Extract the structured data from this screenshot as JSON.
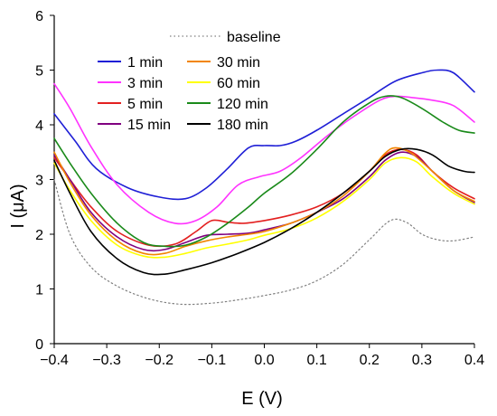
{
  "chart_data": {
    "type": "line",
    "title": "",
    "xlabel": "E (V)",
    "ylabel": "I (μA)",
    "xlim": [
      -0.4,
      0.4
    ],
    "ylim": [
      0,
      6
    ],
    "x_ticks": [
      "−0.4",
      "−0.3",
      "−0.2",
      "−0.1",
      "0.0",
      "0.1",
      "0.2",
      "0.3",
      "0.4"
    ],
    "y_ticks": [
      "0",
      "1",
      "2",
      "3",
      "4",
      "5",
      "6"
    ],
    "grid": false,
    "legend_position": "top-left",
    "series": [
      {
        "name": "baseline",
        "color": "#808080",
        "dash": "dotted",
        "points": [
          [
            -0.4,
            3.0
          ],
          [
            -0.37,
            2.0
          ],
          [
            -0.33,
            1.4
          ],
          [
            -0.28,
            1.05
          ],
          [
            -0.22,
            0.82
          ],
          [
            -0.16,
            0.72
          ],
          [
            -0.1,
            0.74
          ],
          [
            -0.05,
            0.8
          ],
          [
            0.0,
            0.88
          ],
          [
            0.05,
            0.98
          ],
          [
            0.1,
            1.15
          ],
          [
            0.15,
            1.45
          ],
          [
            0.2,
            1.9
          ],
          [
            0.24,
            2.25
          ],
          [
            0.27,
            2.22
          ],
          [
            0.3,
            2.0
          ],
          [
            0.33,
            1.9
          ],
          [
            0.36,
            1.88
          ],
          [
            0.4,
            1.95
          ]
        ]
      },
      {
        "name": "1 min",
        "color": "#1f1fd6",
        "dash": "solid",
        "points": [
          [
            -0.4,
            4.2
          ],
          [
            -0.36,
            3.7
          ],
          [
            -0.32,
            3.2
          ],
          [
            -0.26,
            2.85
          ],
          [
            -0.2,
            2.68
          ],
          [
            -0.15,
            2.65
          ],
          [
            -0.11,
            2.85
          ],
          [
            -0.07,
            3.2
          ],
          [
            -0.03,
            3.58
          ],
          [
            0.0,
            3.62
          ],
          [
            0.03,
            3.62
          ],
          [
            0.06,
            3.7
          ],
          [
            0.1,
            3.9
          ],
          [
            0.15,
            4.2
          ],
          [
            0.2,
            4.5
          ],
          [
            0.25,
            4.8
          ],
          [
            0.3,
            4.95
          ],
          [
            0.33,
            5.0
          ],
          [
            0.36,
            4.95
          ],
          [
            0.4,
            4.6
          ]
        ]
      },
      {
        "name": "3 min",
        "color": "#ff33ff",
        "dash": "solid",
        "points": [
          [
            -0.4,
            4.75
          ],
          [
            -0.37,
            4.3
          ],
          [
            -0.33,
            3.6
          ],
          [
            -0.28,
            2.9
          ],
          [
            -0.22,
            2.4
          ],
          [
            -0.17,
            2.2
          ],
          [
            -0.13,
            2.25
          ],
          [
            -0.09,
            2.5
          ],
          [
            -0.05,
            2.9
          ],
          [
            -0.01,
            3.05
          ],
          [
            0.03,
            3.15
          ],
          [
            0.07,
            3.4
          ],
          [
            0.12,
            3.8
          ],
          [
            0.17,
            4.15
          ],
          [
            0.22,
            4.45
          ],
          [
            0.25,
            4.52
          ],
          [
            0.28,
            4.5
          ],
          [
            0.32,
            4.45
          ],
          [
            0.36,
            4.35
          ],
          [
            0.4,
            4.05
          ]
        ]
      },
      {
        "name": "5 min",
        "color": "#e32020",
        "dash": "solid",
        "points": [
          [
            -0.4,
            3.4
          ],
          [
            -0.37,
            3.0
          ],
          [
            -0.33,
            2.5
          ],
          [
            -0.28,
            2.05
          ],
          [
            -0.22,
            1.8
          ],
          [
            -0.17,
            1.82
          ],
          [
            -0.13,
            2.05
          ],
          [
            -0.1,
            2.25
          ],
          [
            -0.07,
            2.22
          ],
          [
            -0.04,
            2.2
          ],
          [
            0.0,
            2.25
          ],
          [
            0.05,
            2.35
          ],
          [
            0.1,
            2.5
          ],
          [
            0.15,
            2.75
          ],
          [
            0.2,
            3.15
          ],
          [
            0.23,
            3.45
          ],
          [
            0.26,
            3.55
          ],
          [
            0.29,
            3.45
          ],
          [
            0.32,
            3.15
          ],
          [
            0.36,
            2.85
          ],
          [
            0.4,
            2.65
          ]
        ]
      },
      {
        "name": "15 min",
        "color": "#800080",
        "dash": "solid",
        "points": [
          [
            -0.4,
            3.45
          ],
          [
            -0.37,
            3.0
          ],
          [
            -0.33,
            2.4
          ],
          [
            -0.28,
            1.95
          ],
          [
            -0.23,
            1.72
          ],
          [
            -0.19,
            1.72
          ],
          [
            -0.15,
            1.85
          ],
          [
            -0.11,
            1.98
          ],
          [
            -0.07,
            2.0
          ],
          [
            -0.03,
            2.02
          ],
          [
            0.0,
            2.08
          ],
          [
            0.05,
            2.2
          ],
          [
            0.1,
            2.4
          ],
          [
            0.15,
            2.65
          ],
          [
            0.2,
            3.05
          ],
          [
            0.23,
            3.35
          ],
          [
            0.26,
            3.5
          ],
          [
            0.29,
            3.42
          ],
          [
            0.32,
            3.15
          ],
          [
            0.36,
            2.8
          ],
          [
            0.4,
            2.58
          ]
        ]
      },
      {
        "name": "30 min",
        "color": "#f28500",
        "dash": "solid",
        "points": [
          [
            -0.4,
            3.5
          ],
          [
            -0.37,
            2.95
          ],
          [
            -0.33,
            2.35
          ],
          [
            -0.28,
            1.88
          ],
          [
            -0.23,
            1.65
          ],
          [
            -0.19,
            1.65
          ],
          [
            -0.15,
            1.78
          ],
          [
            -0.11,
            1.88
          ],
          [
            -0.07,
            1.95
          ],
          [
            -0.03,
            2.0
          ],
          [
            0.0,
            2.05
          ],
          [
            0.05,
            2.2
          ],
          [
            0.1,
            2.4
          ],
          [
            0.15,
            2.7
          ],
          [
            0.2,
            3.15
          ],
          [
            0.23,
            3.48
          ],
          [
            0.25,
            3.58
          ],
          [
            0.28,
            3.48
          ],
          [
            0.32,
            3.15
          ],
          [
            0.36,
            2.8
          ],
          [
            0.4,
            2.6
          ]
        ]
      },
      {
        "name": "60 min",
        "color": "#ffff00",
        "dash": "solid",
        "points": [
          [
            -0.4,
            3.3
          ],
          [
            -0.37,
            2.8
          ],
          [
            -0.33,
            2.25
          ],
          [
            -0.28,
            1.8
          ],
          [
            -0.23,
            1.6
          ],
          [
            -0.19,
            1.58
          ],
          [
            -0.15,
            1.65
          ],
          [
            -0.11,
            1.75
          ],
          [
            -0.07,
            1.82
          ],
          [
            -0.03,
            1.9
          ],
          [
            0.0,
            1.98
          ],
          [
            0.05,
            2.1
          ],
          [
            0.1,
            2.3
          ],
          [
            0.15,
            2.6
          ],
          [
            0.2,
            3.0
          ],
          [
            0.23,
            3.3
          ],
          [
            0.26,
            3.4
          ],
          [
            0.29,
            3.32
          ],
          [
            0.32,
            3.05
          ],
          [
            0.36,
            2.75
          ],
          [
            0.4,
            2.55
          ]
        ]
      },
      {
        "name": "120 min",
        "color": "#1a8a1a",
        "dash": "solid",
        "points": [
          [
            -0.4,
            3.75
          ],
          [
            -0.37,
            3.3
          ],
          [
            -0.33,
            2.75
          ],
          [
            -0.28,
            2.2
          ],
          [
            -0.23,
            1.85
          ],
          [
            -0.19,
            1.78
          ],
          [
            -0.15,
            1.8
          ],
          [
            -0.11,
            1.95
          ],
          [
            -0.07,
            2.2
          ],
          [
            -0.03,
            2.5
          ],
          [
            0.0,
            2.75
          ],
          [
            0.05,
            3.1
          ],
          [
            0.1,
            3.55
          ],
          [
            0.15,
            4.05
          ],
          [
            0.2,
            4.4
          ],
          [
            0.23,
            4.52
          ],
          [
            0.26,
            4.5
          ],
          [
            0.3,
            4.3
          ],
          [
            0.34,
            4.05
          ],
          [
            0.37,
            3.9
          ],
          [
            0.4,
            3.85
          ]
        ]
      },
      {
        "name": "180 min",
        "color": "#000000",
        "dash": "solid",
        "points": [
          [
            -0.4,
            3.35
          ],
          [
            -0.37,
            2.75
          ],
          [
            -0.33,
            2.05
          ],
          [
            -0.28,
            1.55
          ],
          [
            -0.23,
            1.3
          ],
          [
            -0.19,
            1.27
          ],
          [
            -0.15,
            1.35
          ],
          [
            -0.1,
            1.48
          ],
          [
            -0.05,
            1.65
          ],
          [
            0.0,
            1.85
          ],
          [
            0.05,
            2.1
          ],
          [
            0.1,
            2.4
          ],
          [
            0.15,
            2.75
          ],
          [
            0.2,
            3.15
          ],
          [
            0.23,
            3.42
          ],
          [
            0.26,
            3.55
          ],
          [
            0.29,
            3.55
          ],
          [
            0.32,
            3.45
          ],
          [
            0.35,
            3.25
          ],
          [
            0.38,
            3.15
          ],
          [
            0.4,
            3.13
          ]
        ]
      }
    ]
  }
}
